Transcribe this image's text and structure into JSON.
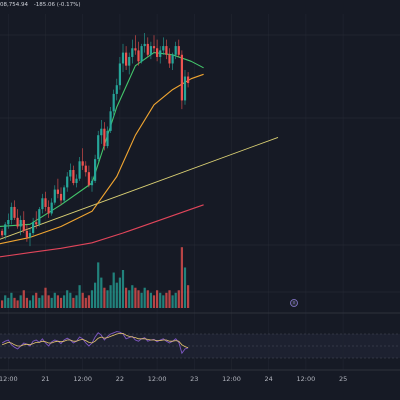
{
  "header": {
    "price_text": "08,754.94",
    "change_text": "-185.06 (-0.17%)"
  },
  "colors": {
    "background": "#161a25",
    "grid": "#2a2e39",
    "up": "#26a69a",
    "down": "#ef5350",
    "ema_fast": "#43c66b",
    "ema_mid": "#f0a531",
    "ema_slow": "#e0455a",
    "trendline": "#d9cf73",
    "rsi_line": "#7e57c2",
    "rsi_signal": "#e6c56f",
    "rsi_band": "#1e2232"
  },
  "chart_data": {
    "type": "candlestick",
    "x_ticks": [
      {
        "label": "12:00",
        "t": 3
      },
      {
        "label": "21",
        "t": 15
      },
      {
        "label": "12:00",
        "t": 27
      },
      {
        "label": "22",
        "t": 39
      },
      {
        "label": "12:00",
        "t": 51
      },
      {
        "label": "23",
        "t": 63
      },
      {
        "label": "12:00",
        "t": 75
      },
      {
        "label": "24",
        "t": 87
      },
      {
        "label": "12:00",
        "t": 99
      },
      {
        "label": "25",
        "t": 111
      }
    ],
    "price_range": [
      102000,
      113500
    ],
    "candles": [
      [
        100,
        103800,
        103900,
        103500,
        103600
      ],
      [
        101,
        103600,
        104200,
        103400,
        104100
      ],
      [
        102,
        104100,
        104600,
        103900,
        104300
      ],
      [
        103,
        104300,
        105100,
        104100,
        104900
      ],
      [
        104,
        104900,
        105200,
        104300,
        104400
      ],
      [
        105,
        104400,
        104800,
        103900,
        104000
      ],
      [
        106,
        104000,
        104500,
        103600,
        104300
      ],
      [
        107,
        104300,
        104700,
        103700,
        103800
      ],
      [
        108,
        103800,
        104100,
        103300,
        103500
      ],
      [
        109,
        103500,
        103900,
        103100,
        103700
      ],
      [
        110,
        103700,
        104400,
        103600,
        104200
      ],
      [
        111,
        104200,
        104700,
        103900,
        104100
      ],
      [
        112,
        104100,
        104900,
        104000,
        104800
      ],
      [
        113,
        104800,
        105500,
        104600,
        105300
      ],
      [
        114,
        105300,
        105600,
        104700,
        104900
      ],
      [
        115,
        104900,
        105200,
        104400,
        104600
      ],
      [
        116,
        104600,
        105300,
        104500,
        105100
      ],
      [
        117,
        105100,
        105900,
        105000,
        105700
      ],
      [
        118,
        105700,
        106200,
        105300,
        105500
      ],
      [
        119,
        105500,
        105800,
        105000,
        105200
      ],
      [
        120,
        105200,
        105900,
        105100,
        105800
      ],
      [
        121,
        105800,
        106500,
        105600,
        106300
      ],
      [
        122,
        106300,
        106900,
        106100,
        106600
      ],
      [
        123,
        106600,
        106800,
        105900,
        106000
      ],
      [
        124,
        106000,
        106400,
        105800,
        106200
      ],
      [
        125,
        106200,
        107200,
        106100,
        107000
      ],
      [
        126,
        107000,
        107600,
        106600,
        106800
      ],
      [
        127,
        106800,
        107000,
        106300,
        106500
      ],
      [
        128,
        106500,
        106800,
        105800,
        105900
      ],
      [
        129,
        105900,
        106300,
        105600,
        106100
      ],
      [
        130,
        106100,
        107300,
        106000,
        107100
      ],
      [
        131,
        107100,
        108400,
        107000,
        108200
      ],
      [
        132,
        108200,
        108900,
        107800,
        108500
      ],
      [
        133,
        108500,
        108800,
        107500,
        107700
      ],
      [
        134,
        107700,
        108600,
        107600,
        108400
      ],
      [
        135,
        108400,
        109500,
        108300,
        109300
      ],
      [
        136,
        109300,
        110300,
        109000,
        110100
      ],
      [
        137,
        110100,
        110800,
        109800,
        110500
      ],
      [
        138,
        110500,
        111800,
        110300,
        111500
      ],
      [
        139,
        111500,
        112400,
        111100,
        112000
      ],
      [
        140,
        112000,
        112300,
        111200,
        111400
      ],
      [
        141,
        111400,
        112000,
        111000,
        111800
      ],
      [
        142,
        111800,
        112600,
        111500,
        112200
      ],
      [
        143,
        112200,
        112800,
        111900,
        112100
      ],
      [
        144,
        112100,
        112500,
        111400,
        111600
      ],
      [
        145,
        111600,
        112400,
        111500,
        112300
      ],
      [
        146,
        112300,
        112900,
        112000,
        112400
      ],
      [
        147,
        112400,
        112700,
        111800,
        111900
      ],
      [
        148,
        111900,
        112500,
        111700,
        112300
      ],
      [
        149,
        112300,
        112800,
        112000,
        112200
      ],
      [
        150,
        112200,
        112600,
        111600,
        111800
      ],
      [
        151,
        111800,
        112300,
        111500,
        112100
      ],
      [
        152,
        112100,
        112700,
        111900,
        112300
      ],
      [
        153,
        112300,
        112600,
        111700,
        111900
      ],
      [
        154,
        111900,
        112200,
        111300,
        111500
      ],
      [
        155,
        111500,
        112000,
        111200,
        111900
      ],
      [
        156,
        111900,
        112500,
        111700,
        112300
      ],
      [
        157,
        112300,
        112600,
        111800,
        111900
      ],
      [
        158,
        111900,
        112100,
        109400,
        109800
      ],
      [
        159,
        109800,
        111200,
        109600,
        110900
      ],
      [
        160,
        110900,
        111100,
        110400,
        110600
      ]
    ],
    "ema_fast": [
      [
        0,
        104000
      ],
      [
        10,
        104100
      ],
      [
        20,
        105000
      ],
      [
        30,
        106000
      ],
      [
        38,
        109500
      ],
      [
        44,
        111400
      ],
      [
        50,
        112000
      ],
      [
        56,
        111900
      ],
      [
        62,
        111600
      ],
      [
        66,
        111300
      ]
    ],
    "ema_mid": [
      [
        0,
        103200
      ],
      [
        10,
        103500
      ],
      [
        20,
        104000
      ],
      [
        30,
        104700
      ],
      [
        38,
        106300
      ],
      [
        44,
        108200
      ],
      [
        50,
        109600
      ],
      [
        56,
        110300
      ],
      [
        62,
        110800
      ],
      [
        66,
        111000
      ]
    ],
    "ema_slow": [
      [
        0,
        102600
      ],
      [
        10,
        102800
      ],
      [
        20,
        103000
      ],
      [
        30,
        103250
      ],
      [
        40,
        103700
      ],
      [
        50,
        104200
      ],
      [
        60,
        104700
      ],
      [
        66,
        105000
      ]
    ],
    "trendline": [
      [
        0,
        103400
      ],
      [
        90,
        108100
      ]
    ],
    "volumes": [
      3,
      5,
      4,
      6,
      4,
      3,
      5,
      7,
      4,
      3,
      5,
      6,
      4,
      5,
      8,
      5,
      4,
      6,
      5,
      4,
      5,
      7,
      6,
      4,
      5,
      9,
      6,
      4,
      5,
      7,
      10,
      18,
      12,
      8,
      7,
      9,
      14,
      10,
      12,
      15,
      8,
      7,
      9,
      8,
      7,
      6,
      8,
      7,
      6,
      5,
      7,
      6,
      5,
      6,
      7,
      5,
      6,
      7,
      24,
      16,
      9
    ],
    "volume_range": [
      0,
      30
    ],
    "rsi": [
      55,
      58,
      60,
      52,
      48,
      45,
      50,
      55,
      53,
      50,
      58,
      60,
      56,
      62,
      55,
      50,
      57,
      60,
      58,
      54,
      60,
      63,
      60,
      55,
      58,
      65,
      62,
      55,
      50,
      55,
      65,
      72,
      68,
      60,
      66,
      70,
      72,
      74,
      73,
      70,
      62,
      64,
      66,
      60,
      58,
      62,
      64,
      58,
      60,
      61,
      57,
      60,
      62,
      58,
      55,
      58,
      62,
      56,
      38,
      45,
      47
    ],
    "rsi_signal": [
      52,
      54,
      56,
      55,
      52,
      50,
      50,
      52,
      53,
      52,
      54,
      56,
      56,
      58,
      57,
      55,
      55,
      57,
      58,
      57,
      58,
      60,
      60,
      58,
      58,
      60,
      61,
      59,
      56,
      55,
      58,
      63,
      65,
      63,
      64,
      66,
      68,
      70,
      71,
      71,
      68,
      66,
      65,
      64,
      62,
      62,
      62,
      61,
      60,
      60,
      59,
      59,
      60,
      60,
      58,
      58,
      59,
      58,
      52,
      49,
      47
    ],
    "rsi_range": [
      20,
      90
    ],
    "grid": true
  }
}
